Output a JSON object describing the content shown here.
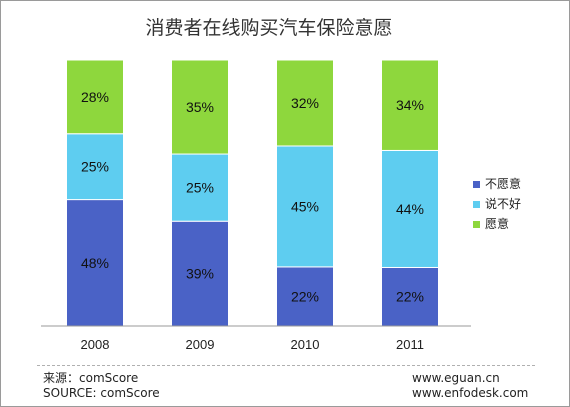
{
  "colors": {
    "不愿意": "#4a62c6",
    "说不好": "#5ecdf0",
    "愿意": "#8ed73d",
    "label_text": "#111111"
  },
  "chart_data": {
    "type": "bar",
    "stacked": true,
    "title": "消费者在线购买汽车保险意愿",
    "categories": [
      "2008",
      "2009",
      "2010",
      "2011"
    ],
    "series": [
      {
        "name": "不愿意",
        "values": [
          48,
          39,
          22,
          22
        ]
      },
      {
        "name": "说不好",
        "values": [
          25,
          25,
          45,
          44
        ]
      },
      {
        "name": "愿意",
        "values": [
          28,
          35,
          32,
          34
        ]
      }
    ],
    "value_labels": [
      [
        "48%",
        "39%",
        "22%",
        "22%"
      ],
      [
        "25%",
        "25%",
        "45%",
        "44%"
      ],
      [
        "28%",
        "35%",
        "32%",
        "34%"
      ]
    ],
    "ylim": [
      0,
      100
    ],
    "grid": false,
    "legend_position": "right"
  },
  "footer": {
    "source_cn": "来源：comScore",
    "source_en": "SOURCE: comScore",
    "site1": "www.eguan.cn",
    "site2": "www.enfodesk.com"
  }
}
